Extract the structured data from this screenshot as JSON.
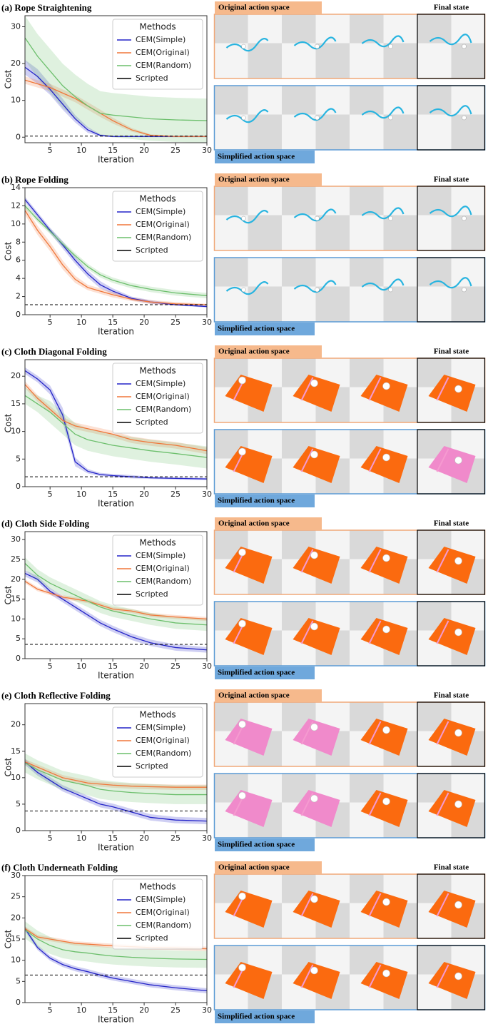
{
  "chart_data": [
    {
      "type": "line",
      "title": "(a) Rope Straightening",
      "xlabel": "Iteration",
      "ylabel": "Cost",
      "legend_title": "Methods",
      "legend": "upper right",
      "x": [
        1,
        3,
        5,
        7,
        9,
        11,
        13,
        15,
        18,
        21,
        25,
        30
      ],
      "xlim": [
        1,
        30
      ],
      "xticks": [
        5,
        10,
        15,
        20,
        25,
        30
      ],
      "ylim": [
        -1.5,
        33
      ],
      "yticks": [
        0,
        10,
        20,
        30
      ],
      "series": [
        {
          "name": "CEM(Simple)",
          "color": "#2323c8",
          "values": [
            19,
            16.5,
            13,
            9,
            5,
            2,
            0.5,
            0.2,
            0.2,
            0.2,
            0.2,
            0.2
          ],
          "band": [
            2,
            2,
            1.5,
            1.5,
            1,
            0.8,
            0.3,
            0.2,
            0.2,
            0.2,
            0.2,
            0.2
          ]
        },
        {
          "name": "CEM(Original)",
          "color": "#f0773a",
          "values": [
            15.5,
            14.5,
            13.5,
            12,
            10.5,
            8.5,
            6.5,
            4.5,
            2,
            0.5,
            0.2,
            0.2
          ],
          "band": [
            1,
            1,
            1,
            1,
            1,
            1,
            1,
            0.8,
            0.5,
            0.3,
            0.2,
            0.2
          ]
        },
        {
          "name": "CEM(Random)",
          "color": "#6cbf6c",
          "values": [
            27,
            22,
            18,
            14,
            11,
            8.5,
            6.5,
            6,
            5.5,
            5,
            4.7,
            4.5
          ],
          "band": [
            6,
            6,
            6,
            6,
            6,
            6,
            6,
            6,
            6,
            6,
            6,
            6
          ]
        }
      ],
      "reference": {
        "name": "Scripted",
        "value": 0.3,
        "color": "#000000"
      },
      "panels": {
        "original": "Original action space",
        "final": "Final state",
        "simplified": "Simplified action space"
      }
    },
    {
      "type": "line",
      "title": "(b) Rope Folding",
      "xlabel": "Iteration",
      "ylabel": "Cost",
      "legend_title": "Methods",
      "legend": "upper right",
      "x": [
        1,
        3,
        5,
        7,
        9,
        11,
        13,
        15,
        18,
        21,
        25,
        30
      ],
      "xlim": [
        1,
        30
      ],
      "xticks": [
        5,
        10,
        15,
        20,
        25,
        30
      ],
      "ylim": [
        0,
        14
      ],
      "yticks": [
        0,
        2,
        4,
        6,
        8,
        10,
        12,
        14
      ],
      "series": [
        {
          "name": "CEM(Simple)",
          "color": "#2323c8",
          "values": [
            12.7,
            11,
            9.3,
            7.7,
            6,
            4.5,
            3.3,
            2.6,
            1.8,
            1.4,
            1.1,
            0.9
          ],
          "band": [
            0.3,
            0.3,
            0.3,
            0.4,
            0.4,
            0.4,
            0.4,
            0.3,
            0.2,
            0.2,
            0.1,
            0.1
          ]
        },
        {
          "name": "CEM(Original)",
          "color": "#f0773a",
          "values": [
            11.5,
            9.3,
            7.5,
            5.5,
            3.9,
            3,
            2.6,
            2.2,
            1.7,
            1.4,
            1.2,
            1.1
          ],
          "band": [
            0.5,
            0.5,
            0.5,
            0.5,
            0.4,
            0.3,
            0.3,
            0.3,
            0.2,
            0.2,
            0.2,
            0.1
          ]
        },
        {
          "name": "CEM(Random)",
          "color": "#6cbf6c",
          "values": [
            12,
            10.5,
            9.2,
            7.8,
            6.5,
            5.3,
            4.4,
            3.8,
            3.2,
            2.8,
            2.4,
            2.1
          ],
          "band": [
            0.3,
            0.3,
            0.3,
            0.3,
            0.3,
            0.3,
            0.3,
            0.3,
            0.3,
            0.3,
            0.3,
            0.3
          ]
        }
      ],
      "reference": {
        "name": "Scripted",
        "value": 1.1,
        "color": "#000000"
      },
      "panels": {
        "original": "Original action space",
        "final": "Final state",
        "simplified": "Simplified action space"
      }
    },
    {
      "type": "line",
      "title": "(c) Cloth Diagonal Folding",
      "xlabel": "Iteration",
      "ylabel": "Cost",
      "legend_title": "Methods",
      "legend": "upper right",
      "x": [
        1,
        3,
        5,
        7,
        9,
        11,
        13,
        15,
        18,
        21,
        25,
        30
      ],
      "xlim": [
        1,
        30
      ],
      "xticks": [
        5,
        10,
        15,
        20,
        25,
        30
      ],
      "ylim": [
        0,
        23
      ],
      "yticks": [
        0,
        5,
        10,
        15,
        20
      ],
      "series": [
        {
          "name": "CEM(Simple)",
          "color": "#2323c8",
          "values": [
            21,
            19.5,
            17.5,
            13,
            4.5,
            2.8,
            2.2,
            2,
            1.8,
            1.6,
            1.5,
            1.4
          ],
          "band": [
            0.6,
            0.6,
            0.8,
            1.3,
            0.8,
            0.4,
            0.3,
            0.3,
            0.3,
            0.2,
            0.2,
            0.2
          ]
        },
        {
          "name": "CEM(Original)",
          "color": "#f0773a",
          "values": [
            18.5,
            16,
            14,
            12,
            11,
            10.5,
            10,
            9.5,
            8.5,
            8,
            7.5,
            6.5
          ],
          "band": [
            0.6,
            0.6,
            0.6,
            0.6,
            0.6,
            0.6,
            0.6,
            0.6,
            0.6,
            0.6,
            0.6,
            0.6
          ]
        },
        {
          "name": "CEM(Random)",
          "color": "#6cbf6c",
          "values": [
            16.5,
            15,
            13.5,
            11.5,
            9.5,
            8.5,
            8,
            7.5,
            7,
            6.5,
            6,
            5.3
          ],
          "band": [
            1.5,
            1.5,
            2,
            2,
            2,
            2,
            2,
            2,
            2,
            2,
            2,
            2
          ]
        }
      ],
      "reference": {
        "name": "Scripted",
        "value": 1.8,
        "color": "#000000"
      },
      "panels": {
        "original": "Original action space",
        "final": "Final state",
        "simplified": "Simplified action space"
      }
    },
    {
      "type": "line",
      "title": "(d) Cloth Side Folding",
      "xlabel": "Iteration",
      "ylabel": "Cost",
      "legend_title": "Methods",
      "legend": "upper right",
      "x": [
        1,
        3,
        5,
        7,
        9,
        11,
        13,
        15,
        18,
        21,
        25,
        30
      ],
      "xlim": [
        1,
        30
      ],
      "xticks": [
        5,
        10,
        15,
        20,
        25,
        30
      ],
      "ylim": [
        0,
        32
      ],
      "yticks": [
        0,
        5,
        10,
        15,
        20,
        25,
        30
      ],
      "series": [
        {
          "name": "CEM(Simple)",
          "color": "#2323c8",
          "values": [
            21.5,
            20,
            17,
            15,
            13,
            11,
            9,
            7.5,
            5.5,
            4,
            2.8,
            2.2
          ],
          "band": [
            0.8,
            0.8,
            0.8,
            0.8,
            0.8,
            0.8,
            0.8,
            0.8,
            0.8,
            0.8,
            0.8,
            0.7
          ]
        },
        {
          "name": "CEM(Original)",
          "color": "#f0773a",
          "values": [
            19.5,
            17.5,
            16.5,
            15.5,
            15,
            14.5,
            13.5,
            12.5,
            12,
            11,
            10.5,
            10
          ],
          "band": [
            0.5,
            0.5,
            0.5,
            0.5,
            0.5,
            0.5,
            0.5,
            0.5,
            0.5,
            0.5,
            0.5,
            0.5
          ]
        },
        {
          "name": "CEM(Random)",
          "color": "#6cbf6c",
          "values": [
            24,
            21,
            19,
            17.5,
            16,
            14.5,
            13,
            12,
            11,
            10,
            9,
            8.5
          ],
          "band": [
            1.5,
            1.5,
            1.5,
            1.5,
            1.5,
            1.5,
            1.5,
            1.5,
            1.5,
            1.5,
            1.5,
            1.5
          ]
        }
      ],
      "reference": {
        "name": "Scripted",
        "value": 3.6,
        "color": "#000000"
      },
      "panels": {
        "original": "Original action space",
        "final": "Final state",
        "simplified": "Simplified action space"
      }
    },
    {
      "type": "line",
      "title": "(e) Cloth Reflective Folding",
      "xlabel": "Iteration",
      "ylabel": "Cost",
      "legend_title": "Methods",
      "legend": "upper right",
      "x": [
        1,
        3,
        5,
        7,
        9,
        11,
        13,
        15,
        18,
        21,
        25,
        30
      ],
      "xlim": [
        1,
        30
      ],
      "xticks": [
        5,
        10,
        15,
        20,
        25,
        30
      ],
      "ylim": [
        0,
        24
      ],
      "yticks": [
        0,
        5,
        10,
        15,
        20
      ],
      "series": [
        {
          "name": "CEM(Simple)",
          "color": "#2323c8",
          "values": [
            13,
            11,
            9.5,
            8,
            7,
            6,
            5,
            4.5,
            3.5,
            2.5,
            2,
            1.8
          ],
          "band": [
            0.6,
            0.6,
            0.6,
            0.6,
            0.6,
            0.6,
            0.6,
            0.6,
            0.6,
            0.6,
            0.6,
            0.6
          ]
        },
        {
          "name": "CEM(Original)",
          "color": "#f0773a",
          "values": [
            13,
            12,
            11,
            10,
            9.5,
            9,
            8.8,
            8.6,
            8.4,
            8.3,
            8.2,
            8.2
          ],
          "band": [
            0.5,
            0.5,
            0.5,
            0.5,
            0.5,
            0.5,
            0.5,
            0.5,
            0.5,
            0.5,
            0.5,
            0.5
          ]
        },
        {
          "name": "CEM(Random)",
          "color": "#6cbf6c",
          "values": [
            12.8,
            11.5,
            10.5,
            9.5,
            9,
            8.5,
            7.8,
            7.5,
            7.2,
            7,
            6.8,
            6.8
          ],
          "band": [
            1.8,
            1.8,
            1.8,
            1.8,
            1.8,
            1.8,
            1.8,
            1.8,
            1.8,
            1.8,
            1.8,
            1.8
          ]
        }
      ],
      "reference": {
        "name": "Scripted",
        "value": 3.7,
        "color": "#000000"
      },
      "panels": {
        "original": "Original action space",
        "final": "Final state",
        "simplified": "Simplified action space"
      }
    },
    {
      "type": "line",
      "title": "(f) Cloth Underneath Folding",
      "xlabel": "Iteration",
      "ylabel": "Cost",
      "legend_title": "Methods",
      "legend": "upper right",
      "x": [
        1,
        3,
        5,
        7,
        9,
        11,
        13,
        15,
        18,
        21,
        25,
        30
      ],
      "xlim": [
        1,
        30
      ],
      "xticks": [
        5,
        10,
        15,
        20,
        25,
        30
      ],
      "ylim": [
        0,
        30
      ],
      "yticks": [
        0,
        5,
        10,
        15,
        20,
        25,
        30
      ],
      "series": [
        {
          "name": "CEM(Simple)",
          "color": "#2323c8",
          "values": [
            17.5,
            13,
            10.5,
            9,
            8,
            7.3,
            6.5,
            5.8,
            5,
            4.2,
            3.5,
            2.8
          ],
          "band": [
            0.6,
            0.6,
            0.6,
            0.6,
            0.6,
            0.6,
            0.6,
            0.6,
            0.6,
            0.6,
            0.6,
            0.6
          ]
        },
        {
          "name": "CEM(Original)",
          "color": "#f0773a",
          "values": [
            17.5,
            15.5,
            15,
            14.5,
            14,
            13.8,
            13.6,
            13.4,
            13.2,
            13,
            12.9,
            12.7
          ],
          "band": [
            0.5,
            0.5,
            0.5,
            0.5,
            0.5,
            0.5,
            0.5,
            0.5,
            0.5,
            0.5,
            0.5,
            0.5
          ]
        },
        {
          "name": "CEM(Random)",
          "color": "#6cbf6c",
          "values": [
            17.2,
            15,
            13.5,
            12.5,
            12,
            11.7,
            11.3,
            11,
            10.7,
            10.5,
            10.3,
            10.2
          ],
          "band": [
            2,
            2,
            2,
            2,
            2,
            2,
            2,
            2,
            2,
            2,
            2,
            2
          ]
        }
      ],
      "reference": {
        "name": "Scripted",
        "value": 6.5,
        "color": "#000000"
      },
      "panels": {
        "original": "Original action space",
        "final": "Final state",
        "simplified": "Simplified action space"
      }
    }
  ]
}
